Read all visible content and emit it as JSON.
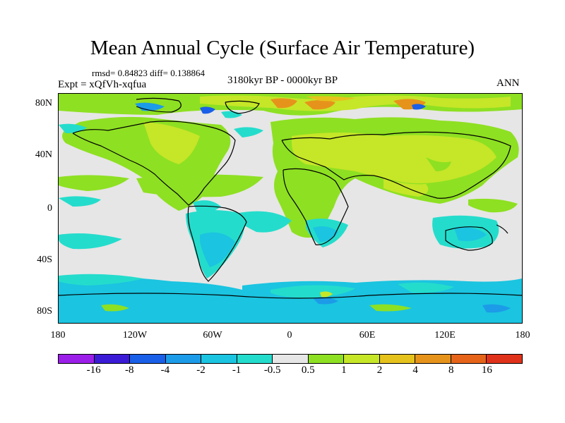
{
  "title": "Mean Annual Cycle (Surface Air Temperature)",
  "stats": "rmsd= 0.84823 diff= 0.138864",
  "experiment": "Expt = xQfVh-xqfua",
  "period": "3180kyr BP - 0000kyr BP",
  "season": "ANN",
  "y_axis_labels": [
    "80N",
    "40N",
    "0",
    "40S",
    "80S"
  ],
  "x_axis_labels": [
    "180",
    "120W",
    "60W",
    "0",
    "60E",
    "120E",
    "180"
  ],
  "colorbar": {
    "labels": [
      "-16",
      "-8",
      "-4",
      "-2",
      "-1",
      "-0.5",
      "0.5",
      "1",
      "2",
      "4",
      "8",
      "16"
    ],
    "colors": [
      "#9b1fe8",
      "#3c1bd6",
      "#1a5fe8",
      "#1c9be8",
      "#1bc4e0",
      "#24dccc",
      "#e6e6e6",
      "#8ee022",
      "#c6e628",
      "#e6c21c",
      "#e6931b",
      "#e5641a",
      "#e0321a"
    ]
  },
  "map_colors": {
    "background": "#e6e6e6",
    "green": "#8ee022",
    "yellow_green": "#c6e628",
    "gold": "#e6c21c",
    "orange": "#e6931b",
    "cyan": "#24dccc",
    "light_blue": "#1bc4e0",
    "blue": "#1c9be8",
    "dark_blue": "#1a5fe8",
    "coast": "#000000"
  }
}
